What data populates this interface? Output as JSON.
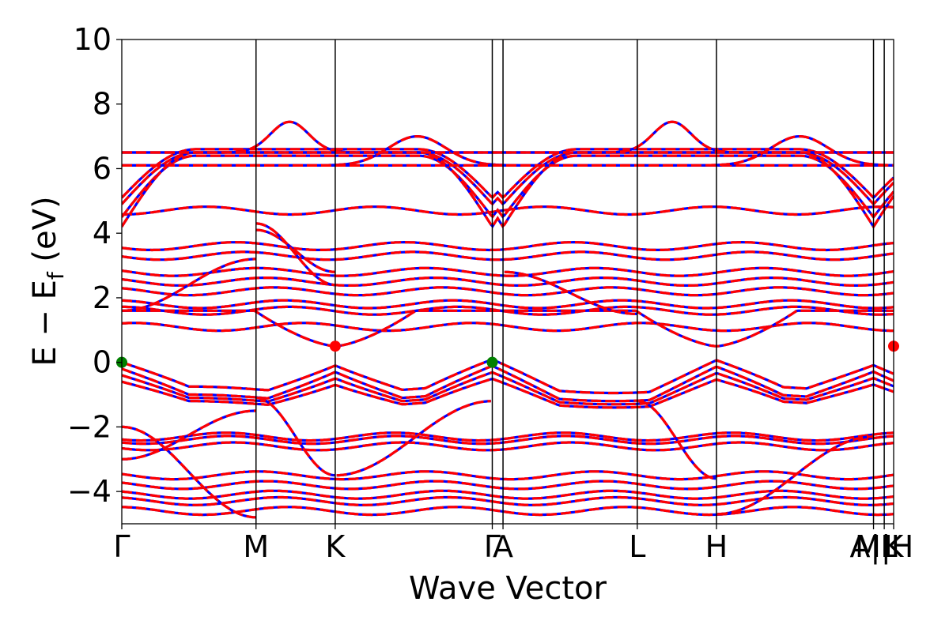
{
  "chart_data": {
    "type": "line",
    "title": "",
    "xlabel": "Wave Vector",
    "ylabel": {
      "main": "E − E",
      "sub": "f",
      "unit": " (eV)"
    },
    "ylim": [
      -5,
      10
    ],
    "yticks": [
      -4,
      -2,
      0,
      2,
      4,
      6,
      8,
      10
    ],
    "ytick_labels": [
      "−4",
      "−2",
      "0",
      "2",
      "4",
      "6",
      "8",
      "10"
    ],
    "xlim": [
      0,
      5.75
    ],
    "kpoints": [
      {
        "label": "Γ",
        "x": 0.0
      },
      {
        "label": "M",
        "x": 1.0
      },
      {
        "label": "K",
        "x": 1.59
      },
      {
        "label": "Γ",
        "x": 2.76
      },
      {
        "label": "A",
        "x": 2.84
      },
      {
        "label": "L",
        "x": 3.84
      },
      {
        "label": "H",
        "x": 4.43
      },
      {
        "label": "A|L",
        "x": 5.6
      },
      {
        "label": "M|H",
        "x": 5.68
      },
      {
        "label": "K",
        "x": 5.75
      }
    ],
    "vertical_lines_x": [
      1.0,
      1.59,
      2.76,
      2.84,
      3.84,
      4.43,
      5.6,
      5.68
    ],
    "series": [
      {
        "color": "#0000ff",
        "style": "solid"
      },
      {
        "color": "#ff0000",
        "style": "dashed"
      }
    ],
    "bands": [
      {
        "type": "flat",
        "e": 1.6
      },
      {
        "type": "flat",
        "e": 1.1
      },
      {
        "type": "flat",
        "e": 1.8
      },
      {
        "type": "flat",
        "e": 2.5
      },
      {
        "type": "flat",
        "e": 2.8
      },
      {
        "type": "flat",
        "e": 2.2
      },
      {
        "type": "flat",
        "e": 3.3
      },
      {
        "type": "flat",
        "e": 4.7
      },
      {
        "type": "flat",
        "e": 3.6
      },
      {
        "type": "flat",
        "e": -2.4
      },
      {
        "type": "flat",
        "e": -2.6
      },
      {
        "type": "flat",
        "e": -2.3
      },
      {
        "type": "flat",
        "e": -3.5
      },
      {
        "type": "flat",
        "e": -4.3
      },
      {
        "type": "flat",
        "e": -4.6
      },
      {
        "type": "flat",
        "e": -3.8
      },
      {
        "type": "flat",
        "e": -4.1
      },
      {
        "type": "vb",
        "e0": 0.0,
        "amp": 0.85
      },
      {
        "type": "vb",
        "e0": -0.2,
        "amp": 0.9
      },
      {
        "type": "vb",
        "e0": -0.4,
        "amp": 0.8
      },
      {
        "type": "vb",
        "e0": -0.6,
        "amp": 0.7
      },
      {
        "type": "cb",
        "e0": 0.5,
        "amp": 1.1
      },
      {
        "type": "upper",
        "e0": 5.1,
        "amp": 1.5
      },
      {
        "type": "upper",
        "e0": 4.9,
        "amp": 1.6
      },
      {
        "type": "upper",
        "e0": 4.5,
        "amp": 1.9
      },
      {
        "type": "upper",
        "e0": 4.2,
        "amp": 2.3
      },
      {
        "type": "peak",
        "base": 6.5,
        "top": 7.45,
        "center": 1.25,
        "width": 0.2
      },
      {
        "type": "peak",
        "base": 6.5,
        "top": 7.45,
        "center": 4.1,
        "width": 0.2
      },
      {
        "type": "peak",
        "base": 6.1,
        "top": 7.0,
        "center": 2.2,
        "width": 0.3
      },
      {
        "type": "peak",
        "base": 6.1,
        "top": 7.0,
        "center": 5.05,
        "width": 0.3
      },
      {
        "type": "cross",
        "a": 4.1,
        "b": 2.8,
        "x0": 1.0,
        "x1": 1.59
      },
      {
        "type": "cross",
        "a": 4.3,
        "b": 2.4,
        "x0": 1.0,
        "x1": 1.59
      },
      {
        "type": "cross",
        "a": 1.6,
        "b": 3.2,
        "x0": 0.0,
        "x1": 1.0
      },
      {
        "type": "cross",
        "a": 2.8,
        "b": 1.5,
        "x0": 2.84,
        "x1": 3.84
      },
      {
        "type": "cross",
        "a": -1.1,
        "b": -3.5,
        "x0": 1.0,
        "x1": 1.59
      },
      {
        "type": "cross",
        "a": -3.5,
        "b": -1.2,
        "x0": 1.59,
        "x1": 2.76
      },
      {
        "type": "cross",
        "a": -1.2,
        "b": -3.6,
        "x0": 3.84,
        "x1": 4.43
      },
      {
        "type": "cross",
        "a": -3.0,
        "b": -1.5,
        "x0": 0.0,
        "x1": 1.0
      },
      {
        "type": "cross",
        "a": -2.0,
        "b": -4.8,
        "x0": 0.0,
        "x1": 1.0
      },
      {
        "type": "cross",
        "a": -4.7,
        "b": -2.3,
        "x0": 4.43,
        "x1": 5.6
      }
    ],
    "markers": [
      {
        "x": 0.0,
        "y": 0.0,
        "color": "#008000"
      },
      {
        "x": 2.76,
        "y": 0.0,
        "color": "#008000"
      },
      {
        "x": 1.59,
        "y": 0.5,
        "color": "#ff0000"
      },
      {
        "x": 5.75,
        "y": 0.5,
        "color": "#ff0000"
      }
    ]
  }
}
